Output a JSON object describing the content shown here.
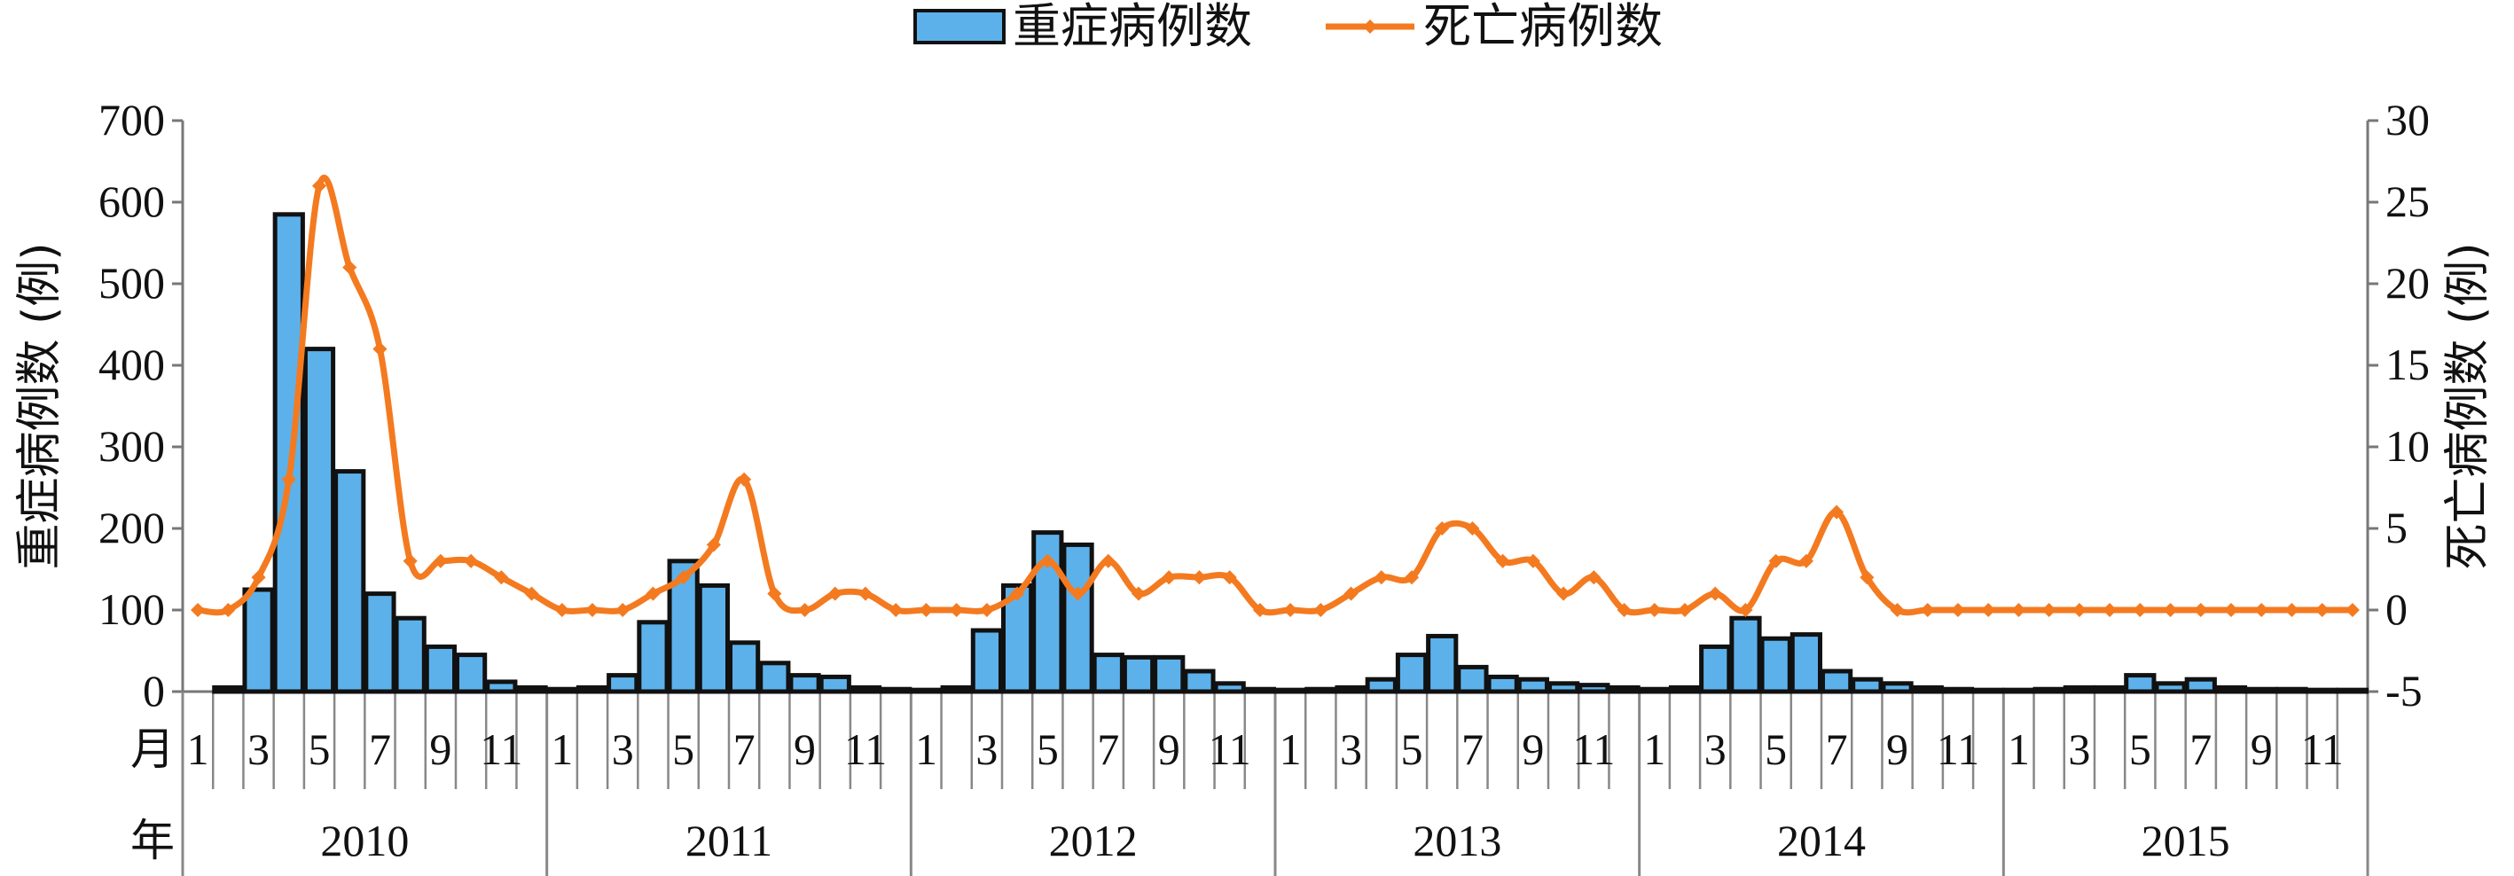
{
  "chart_data": {
    "type": "bar+line",
    "legend": {
      "position": "top-center",
      "items": [
        {
          "label": "重症病例数",
          "symbol": "bar",
          "color": "#5DB1EA"
        },
        {
          "label": "死亡病例数",
          "symbol": "line",
          "color": "#F47A20"
        }
      ]
    },
    "y_left": {
      "label": "重症病例数 (例)",
      "min": 0,
      "max": 700,
      "ticks": [
        0,
        100,
        200,
        300,
        400,
        500,
        600,
        700
      ]
    },
    "y_right": {
      "label": "死亡病例数 (例)",
      "min": -5,
      "max": 30,
      "ticks": [
        -5,
        0,
        5,
        10,
        15,
        20,
        25,
        30
      ]
    },
    "x_axis": {
      "month_row_label": "月",
      "year_row_label": "年",
      "month_ticks": [
        "1",
        "3",
        "5",
        "7",
        "9",
        "11"
      ],
      "years": [
        "2010",
        "2011",
        "2012",
        "2013",
        "2014",
        "2015"
      ]
    },
    "series": [
      {
        "name": "重症病例数",
        "axis": "left",
        "color": "#5DB1EA",
        "values": [
          0,
          5,
          125,
          585,
          420,
          270,
          120,
          90,
          55,
          45,
          12,
          5,
          3,
          5,
          20,
          85,
          160,
          130,
          60,
          35,
          20,
          18,
          5,
          3,
          2,
          5,
          75,
          130,
          195,
          180,
          45,
          42,
          42,
          25,
          10,
          3,
          2,
          3,
          5,
          15,
          45,
          68,
          30,
          18,
          15,
          10,
          8,
          5,
          3,
          5,
          55,
          90,
          65,
          70,
          25,
          15,
          10,
          5,
          3,
          2,
          2,
          3,
          5,
          5,
          20,
          10,
          15,
          5,
          3,
          3,
          2,
          2
        ]
      },
      {
        "name": "死亡病例数",
        "axis": "right",
        "color": "#F47A20",
        "values": [
          0,
          0,
          2,
          8,
          26,
          21,
          16,
          3,
          3,
          3,
          2,
          1,
          0,
          0,
          0,
          1,
          2,
          4,
          8,
          1,
          0,
          1,
          1,
          0,
          0,
          0,
          0,
          1,
          3,
          1,
          3,
          1,
          2,
          2,
          2,
          0,
          0,
          0,
          1,
          2,
          2,
          5,
          5,
          3,
          3,
          1,
          2,
          0,
          0,
          0,
          1,
          0,
          3,
          3,
          6,
          2,
          0,
          0,
          0,
          0,
          0,
          0,
          0,
          0,
          0,
          0,
          0,
          0,
          0,
          0,
          0,
          0
        ]
      }
    ]
  }
}
